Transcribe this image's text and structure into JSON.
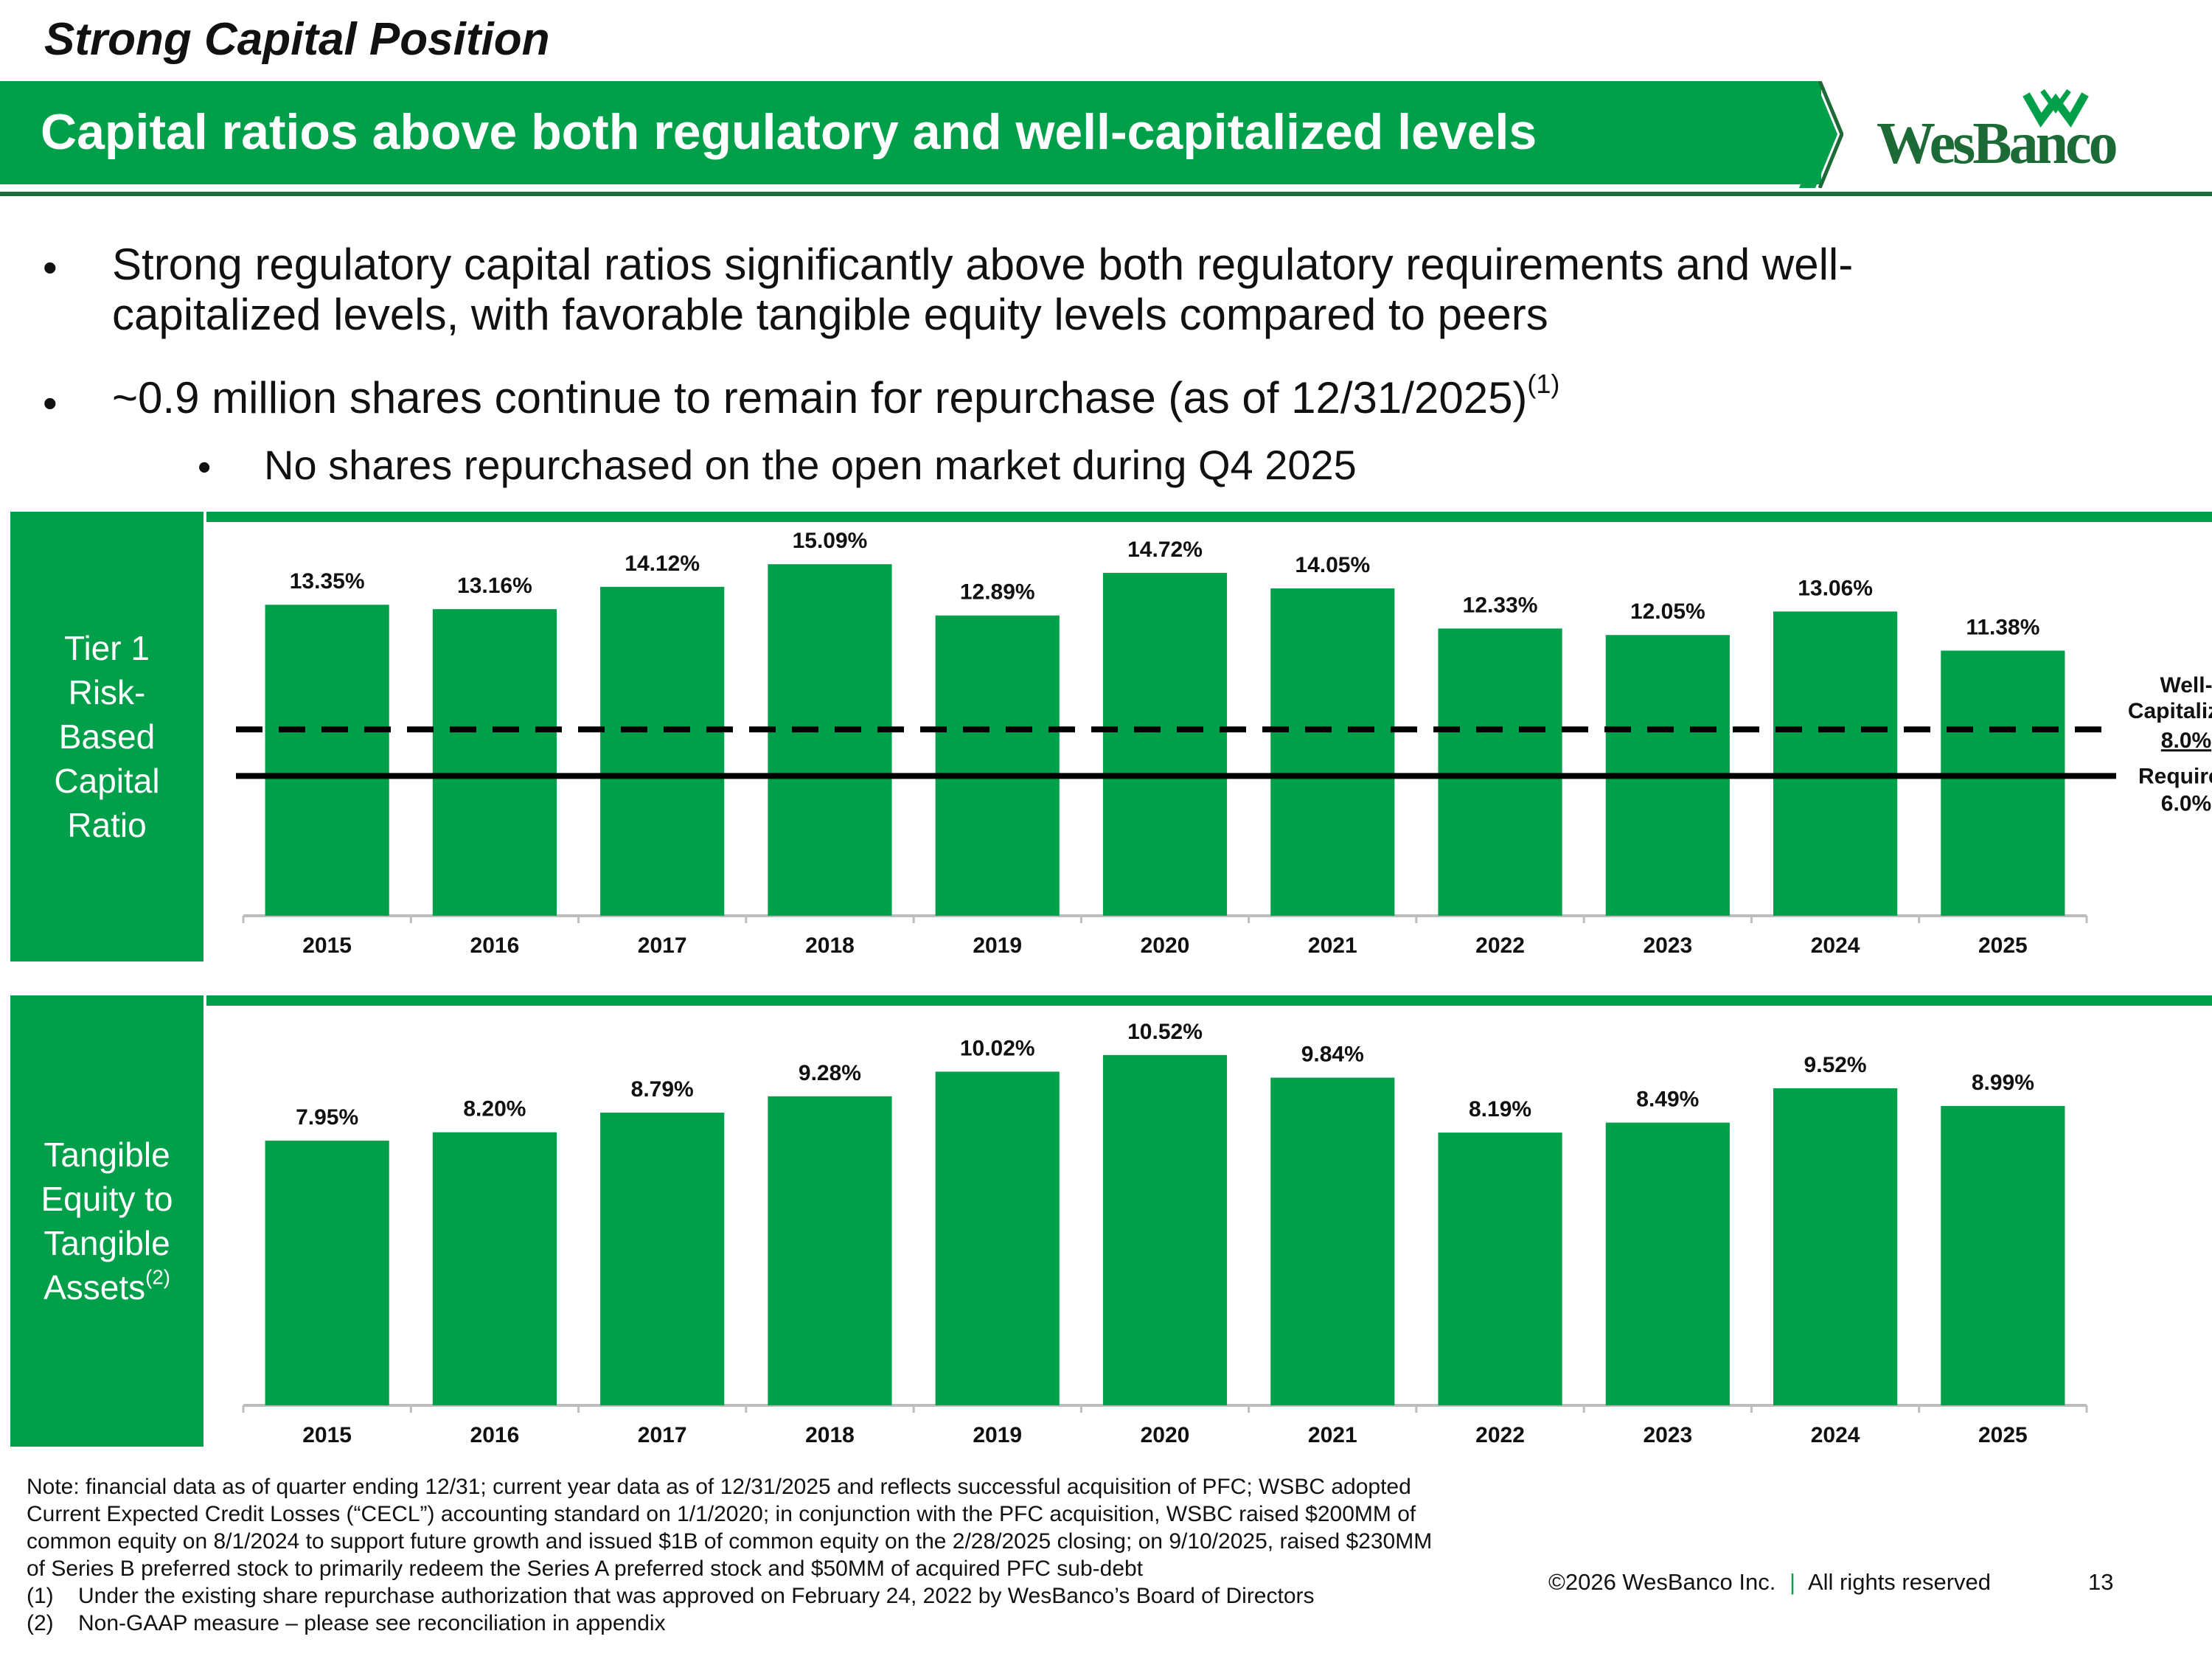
{
  "header": {
    "section_title": "Strong Capital Position",
    "banner_title": "Capital ratios above both regulatory and well-capitalized levels",
    "logo_text": "WesBanco",
    "brand_green": "#00a04a",
    "brand_dark_green": "#1c6a35"
  },
  "bullets": [
    {
      "text": "Strong regulatory capital ratios significantly above both regulatory requirements and well-",
      "cont": "capitalized levels, with favorable tangible equity levels compared to peers"
    },
    {
      "text": "~0.9 million shares continue to remain for repurchase (as of 12/31/2025)",
      "sup": "(1)"
    }
  ],
  "sub_bullet": "No shares repurchased on the open market during Q4 2025",
  "bullet_char": "•",
  "panels": [
    {
      "label_lines": [
        "Tier 1",
        "Risk-",
        "Based",
        "Capital",
        "Ratio"
      ],
      "label_sup": ""
    },
    {
      "label_lines": [
        "Tangible",
        "Equity to",
        "Tangible",
        "Assets"
      ],
      "label_sup": "(2)"
    }
  ],
  "chart_data": [
    {
      "type": "bar",
      "title": "Tier 1 Risk-Based Capital Ratio",
      "categories": [
        "2015",
        "2016",
        "2017",
        "2018",
        "2019",
        "2020",
        "2021",
        "2022",
        "2023",
        "2024",
        "2025"
      ],
      "values": [
        13.35,
        13.16,
        14.12,
        15.09,
        12.89,
        14.72,
        14.05,
        12.33,
        12.05,
        13.06,
        11.38
      ],
      "labels": [
        "13.35%",
        "13.16%",
        "14.12%",
        "15.09%",
        "12.89%",
        "14.72%",
        "14.05%",
        "12.33%",
        "12.05%",
        "13.06%",
        "11.38%"
      ],
      "ylim": [
        0,
        16.9
      ],
      "reference_lines": [
        {
          "name": "Well-Capitalized",
          "value": 8.0,
          "style": "dashed",
          "label_lines": [
            "Well-",
            "Capitalized"
          ],
          "value_label": "8.0%"
        },
        {
          "name": "Required",
          "value": 6.0,
          "style": "solid",
          "label_lines": [
            "Required"
          ],
          "value_label": "6.0%"
        }
      ],
      "color": "#00a04a"
    },
    {
      "type": "bar",
      "title": "Tangible Equity to Tangible Assets",
      "categories": [
        "2015",
        "2016",
        "2017",
        "2018",
        "2019",
        "2020",
        "2021",
        "2022",
        "2023",
        "2024",
        "2025"
      ],
      "values": [
        7.95,
        8.2,
        8.79,
        9.28,
        10.02,
        10.52,
        9.84,
        8.19,
        8.49,
        9.52,
        8.99
      ],
      "labels": [
        "7.95%",
        "8.20%",
        "8.79%",
        "9.28%",
        "10.02%",
        "10.52%",
        "9.84%",
        "8.19%",
        "8.49%",
        "9.52%",
        "8.99%"
      ],
      "ylim": [
        0,
        12.0
      ],
      "color": "#00a04a"
    }
  ],
  "footer": {
    "note_lines": [
      "Note: financial data as of quarter ending 12/31; current year data as of 12/31/2025 and reflects successful acquisition of PFC; WSBC adopted",
      "Current Expected Credit Losses (“CECL”) accounting standard on 1/1/2020; in conjunction with the PFC acquisition, WSBC raised $200MM of",
      "common equity on 8/1/2024 to support future growth and issued $1B of common equity on the 2/28/2025 closing; on 9/10/2025, raised $230MM",
      "of Series B preferred stock to primarily redeem the Series A preferred stock and $50MM of acquired PFC sub-debt"
    ],
    "footnotes": [
      {
        "num": "(1)",
        "text": "Under the existing share repurchase authorization that was approved on February 24, 2022 by WesBanco’s Board of Directors"
      },
      {
        "num": "(2)",
        "text": "Non-GAAP measure – please see reconciliation in appendix"
      }
    ],
    "copyright": "©2026 WesBanco Inc.",
    "separator": "|",
    "rights": "All rights reserved",
    "page_number": "13"
  }
}
